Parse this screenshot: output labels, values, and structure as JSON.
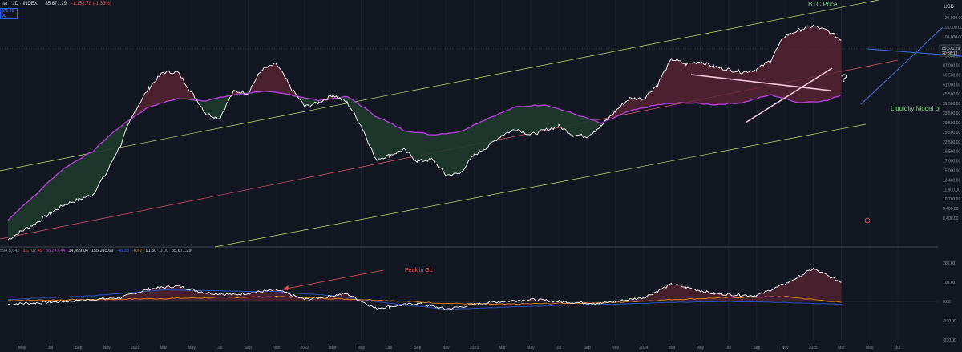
{
  "header": {
    "symbol": "llar · 1D · INDEX",
    "price": "85,671.29",
    "change": "-1,158.78 (-1.33%)",
    "tag_line1": "671.29",
    "tag_line2": "00"
  },
  "currency": "USD",
  "indicator_values": [
    {
      "text": "594 5,642",
      "color": "#8a8d96"
    },
    {
      "text": "16,707.49",
      "color": "#ef5350"
    },
    {
      "text": "86,247.44",
      "color": "#ab47bc"
    },
    {
      "text": "34,499.04",
      "color": "#d1d4dc"
    },
    {
      "text": "155,245.69",
      "color": "#d1d4dc"
    },
    {
      "text": "-46.33",
      "color": "#2962ff"
    },
    {
      "text": "-0.67",
      "color": "#ff9800"
    },
    {
      "text": "91.50",
      "color": "#d1d4dc"
    },
    {
      "text": "0.00",
      "color": "#8a8d96"
    },
    {
      "text": "85,671.29",
      "color": "#d1d4dc"
    }
  ],
  "colors": {
    "background": "#131722",
    "btc": "#ffffff",
    "liquidity": "#b23fd6",
    "channel_outer": "#c8e06a",
    "channel_mid": "#e0566c",
    "fill_above": "#5a2433",
    "fill_below": "#1e3a2c",
    "annotation_blue": "#3f6fe0",
    "annotation_pink": "#f4c6dc",
    "osc_blue": "#2e55c8",
    "osc_orange": "#e38a18",
    "peak_label": "#ef5350",
    "liquidity_label": "#7ed07e"
  },
  "chart_data": [
    {
      "type": "line",
      "y_scale": "log",
      "ylim": [
        7000,
        140000
      ],
      "y_ticks": [
        "130,000.00",
        "115,000.00",
        "103,000.00",
        "91,000.00",
        "79,000.00",
        "67,000.00",
        "59,500.00",
        "51,000.00",
        "45,500.00",
        "39,500.00",
        "33,500.00",
        "29,500.00",
        "25,500.00",
        "22,500.00",
        "19,500.00",
        "17,000.00",
        "15,000.00",
        "13,400.00",
        "11,900.00",
        "10,700.00",
        "9,400.00",
        "8,400.00"
      ],
      "x_ticks": [
        "May",
        "Jul",
        "Sep",
        "Nov",
        "2021",
        "Mar",
        "May",
        "Jul",
        "Sep",
        "Nov",
        "2022",
        "Mar",
        "May",
        "Jul",
        "Sep",
        "Nov",
        "2023",
        "Mar",
        "May",
        "Jul",
        "Sep",
        "Nov",
        "2024",
        "Mar",
        "May",
        "Jul",
        "Sep",
        "Nov",
        "2025",
        "Mar",
        "May",
        "Jul"
      ],
      "price_labels": [
        "85,671.29",
        "20:38:12"
      ],
      "series": [
        {
          "name": "BTC Price",
          "x": [
            "2020-04",
            "2020-06",
            "2020-08",
            "2020-10",
            "2020-11",
            "2020-12",
            "2021-01",
            "2021-02",
            "2021-03",
            "2021-04",
            "2021-05",
            "2021-06",
            "2021-07",
            "2021-08",
            "2021-09",
            "2021-10",
            "2021-11",
            "2021-12",
            "2022-01",
            "2022-02",
            "2022-03",
            "2022-04",
            "2022-05",
            "2022-06",
            "2022-07",
            "2022-08",
            "2022-09",
            "2022-10",
            "2022-11",
            "2022-12",
            "2023-01",
            "2023-02",
            "2023-03",
            "2023-04",
            "2023-05",
            "2023-06",
            "2023-07",
            "2023-08",
            "2023-09",
            "2023-10",
            "2023-11",
            "2023-12",
            "2024-01",
            "2024-02",
            "2024-03",
            "2024-04",
            "2024-05",
            "2024-06",
            "2024-07",
            "2024-08",
            "2024-09",
            "2024-10",
            "2024-11",
            "2024-12",
            "2025-01",
            "2025-02",
            "2025-03"
          ],
          "values": [
            7500,
            9200,
            11500,
            13000,
            17000,
            24000,
            36000,
            48000,
            58000,
            58000,
            45000,
            35000,
            33000,
            46000,
            45000,
            60000,
            64000,
            48000,
            38000,
            40000,
            44000,
            40000,
            30000,
            20000,
            21000,
            22500,
            19500,
            20000,
            16500,
            16800,
            21000,
            23500,
            27000,
            29000,
            27000,
            28500,
            30000,
            27000,
            26500,
            30000,
            36000,
            42000,
            42000,
            50000,
            68000,
            64000,
            66000,
            62000,
            60000,
            58000,
            60000,
            67000,
            90000,
            97000,
            102000,
            96000,
            85671
          ]
        },
        {
          "name": "Liquidity Model of",
          "x": [
            "2020-04",
            "2020-06",
            "2020-08",
            "2020-10",
            "2020-12",
            "2021-02",
            "2021-04",
            "2021-06",
            "2021-08",
            "2021-10",
            "2021-12",
            "2022-02",
            "2022-04",
            "2022-06",
            "2022-08",
            "2022-10",
            "2022-12",
            "2023-02",
            "2023-04",
            "2023-06",
            "2023-08",
            "2023-10",
            "2023-12",
            "2024-02",
            "2024-04",
            "2024-06",
            "2024-08",
            "2024-10",
            "2024-12",
            "2025-02",
            "2025-03"
          ],
          "values": [
            9500,
            13000,
            18000,
            22000,
            30000,
            38000,
            42000,
            41000,
            44000,
            46000,
            44000,
            41000,
            43000,
            34000,
            28500,
            27000,
            28000,
            33000,
            38000,
            39000,
            35000,
            31000,
            36000,
            39000,
            40000,
            39000,
            40000,
            44000,
            40000,
            41000,
            44000
          ]
        }
      ],
      "annotations": [
        {
          "text": "BTC Price",
          "color": "#7ed07e"
        },
        {
          "text": "Liquidity Model of",
          "color": "#7ed07e"
        },
        {
          "text": "?",
          "color": "#ffffff"
        }
      ]
    },
    {
      "type": "line",
      "ylim": [
        -200,
        250
      ],
      "y_ticks": [
        "200.00",
        "100.00",
        "0.00",
        "-100.00",
        "-200.00"
      ],
      "series": [
        {
          "name": "",
          "x": [
            "2020-04",
            "2020-08",
            "2020-12",
            "2021-02",
            "2021-04",
            "2021-06",
            "2021-08",
            "2021-11",
            "2022-01",
            "2022-04",
            "2022-06",
            "2022-09",
            "2022-11",
            "2023-02",
            "2023-05",
            "2023-08",
            "2023-10",
            "2024-01",
            "2024-03",
            "2024-06",
            "2024-09",
            "2024-11",
            "2025-01",
            "2025-03"
          ],
          "values": [
            -15,
            0,
            20,
            65,
            80,
            45,
            35,
            60,
            10,
            40,
            -35,
            -10,
            -40,
            -5,
            10,
            -5,
            -10,
            20,
            90,
            40,
            30,
            90,
            170,
            100
          ]
        },
        {
          "name": "",
          "x": [
            "2020-04",
            "2020-10",
            "2021-03",
            "2021-07",
            "2021-11",
            "2022-03",
            "2022-07",
            "2022-11",
            "2023-03",
            "2023-07",
            "2023-11",
            "2024-03",
            "2024-07",
            "2024-11",
            "2025-03"
          ],
          "values": [
            10,
            30,
            60,
            55,
            50,
            30,
            -10,
            -40,
            -30,
            -20,
            -15,
            -5,
            0,
            -5,
            -15
          ]
        },
        {
          "name": "",
          "x": [
            "2020-04",
            "2020-10",
            "2021-03",
            "2021-07",
            "2021-11",
            "2022-03",
            "2022-07",
            "2022-11",
            "2023-03",
            "2023-07",
            "2023-11",
            "2024-03",
            "2024-07",
            "2024-11",
            "2025-03"
          ],
          "values": [
            5,
            10,
            15,
            20,
            25,
            15,
            5,
            -10,
            -15,
            -10,
            -5,
            10,
            20,
            25,
            -5
          ]
        }
      ],
      "annotations": [
        {
          "text": "Peak in GL",
          "color": "#ef5350"
        }
      ]
    }
  ]
}
